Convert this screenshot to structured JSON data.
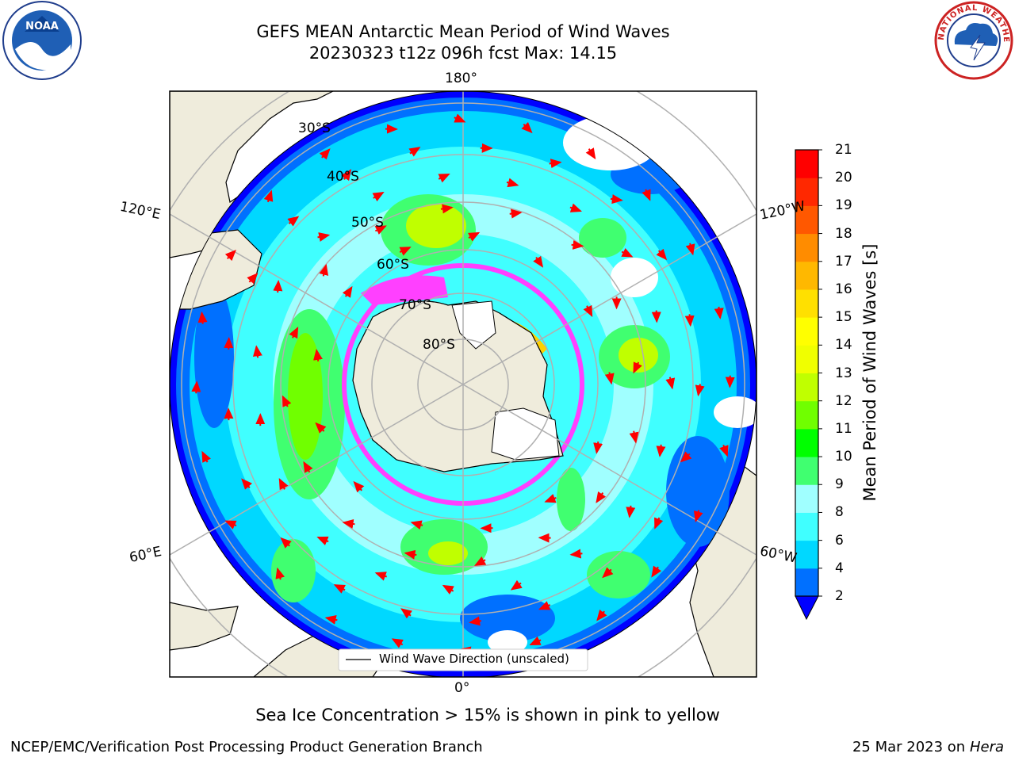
{
  "title_line1": "GEFS MEAN Antarctic Mean Period of Wind Waves",
  "title_line2": "20230323 t12z 096h fcst   Max: 14.15",
  "colorbar": {
    "label": "Mean Period of Wind Waves [s]",
    "ticks": [
      "2",
      "4",
      "6",
      "8",
      "9",
      "10",
      "11",
      "12",
      "13",
      "14",
      "15",
      "16",
      "17",
      "18",
      "19",
      "20",
      "21"
    ],
    "colors": [
      "#0070ff",
      "#00d8ff",
      "#40ffff",
      "#a0ffff",
      "#40ff70",
      "#00ff00",
      "#70ff00",
      "#c0ff00",
      "#f0ff00",
      "#ffff00",
      "#ffe000",
      "#ffb800",
      "#ff8c00",
      "#ff5800",
      "#ff2800",
      "#ff0000"
    ],
    "under_color": "#0000ff"
  },
  "map": {
    "lon_labels": {
      "top": "180°",
      "bottom": "0°",
      "left_upper": "120°E",
      "left_lower": "60°E",
      "right_upper": "120°W",
      "right_lower": "60°W"
    },
    "lat_labels": [
      "30°S",
      "40°S",
      "50°S",
      "60°S",
      "70°S",
      "80°S"
    ],
    "legend_label": "Wind Wave Direction (unscaled)"
  },
  "sea_ice_note": "Sea Ice Concentration > 15% is shown in pink to yellow",
  "footer": {
    "left": "NCEP/EMC/Verification Post Processing Product Generation Branch",
    "date": "25 Mar 2023 on",
    "machine": "Hera"
  },
  "logos": {
    "noaa_text": "NOAA",
    "nws_text": "NATIONAL WEATHER SERVICE"
  },
  "colors": {
    "land": "#efecdc",
    "ocean_white": "#ffffff",
    "arrow": "#ff0000",
    "grid": "#b0b0b0",
    "ice_pink": "#ff40ff",
    "ice_yellow": "#ffd000"
  }
}
